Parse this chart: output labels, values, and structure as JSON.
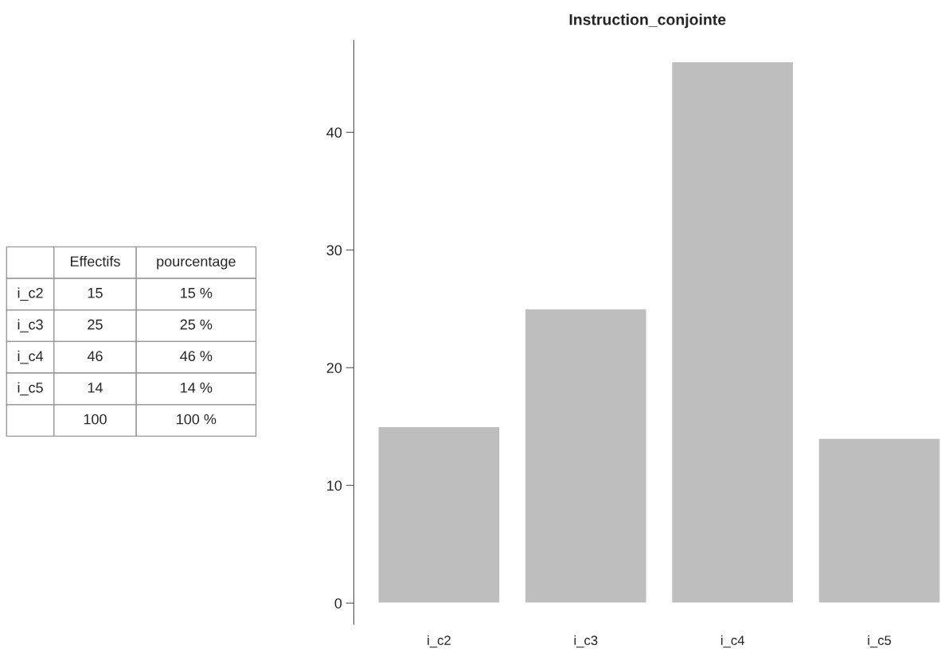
{
  "chart_data": {
    "type": "bar",
    "title": "Instruction_conjointe",
    "categories": [
      "i_c2",
      "i_c3",
      "i_c4",
      "i_c5"
    ],
    "values": [
      15,
      25,
      46,
      14
    ],
    "color": "#bebebe",
    "ylim": [
      -1.8,
      47.8
    ],
    "yticks": [
      0,
      10,
      20,
      30,
      40
    ],
    "grid": false,
    "annotations": [
      "Effectifs",
      "pourcentage",
      "15",
      "15 %",
      "25",
      "25 %",
      "46",
      "46 %",
      "14",
      "14 %",
      "100",
      "100 %"
    ]
  }
}
